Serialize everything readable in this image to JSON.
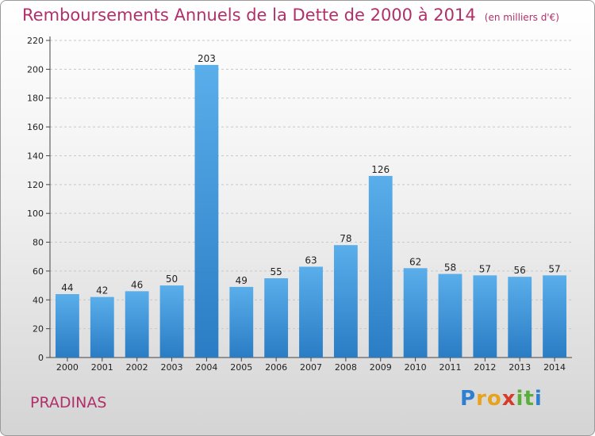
{
  "chart_data": {
    "type": "bar",
    "title": "Remboursements Annuels de la Dette de 2000 à 2014",
    "subtitle": "(en milliers d'€)",
    "categories": [
      "2000",
      "2001",
      "2002",
      "2003",
      "2004",
      "2005",
      "2006",
      "2007",
      "2008",
      "2009",
      "2010",
      "2011",
      "2012",
      "2013",
      "2014"
    ],
    "values": [
      44,
      42,
      46,
      50,
      203,
      49,
      55,
      63,
      78,
      126,
      62,
      58,
      57,
      56,
      57
    ],
    "ylim": [
      0,
      220
    ],
    "yticks": [
      0,
      20,
      40,
      60,
      80,
      100,
      120,
      140,
      160,
      180,
      200,
      220
    ],
    "grid": true,
    "bar_color": "#3a8fd6"
  },
  "commune": "PRADINAS",
  "logo": {
    "letters": [
      "P",
      "r",
      "o",
      "x",
      "i",
      "t",
      "i"
    ],
    "colors": [
      "#2f7fd0",
      "#e8a21c",
      "#e8a21c",
      "#d63a2a",
      "#5cae3a",
      "#5cae3a",
      "#2f7fd0"
    ]
  }
}
